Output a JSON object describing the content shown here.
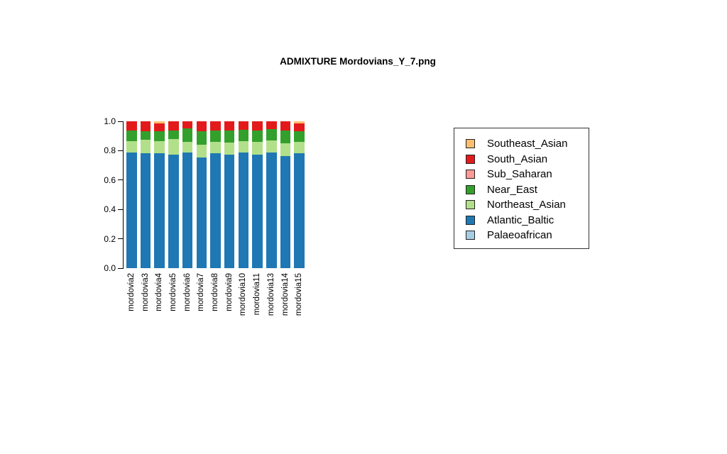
{
  "title": "ADMIXTURE Mordovians_Y_7.png",
  "chart_data": {
    "type": "bar",
    "stacked": true,
    "title": "ADMIXTURE Mordovians_Y_7.png",
    "xlabel": "",
    "ylabel": "",
    "ylim": [
      0,
      1
    ],
    "grid": false,
    "legend_position": "right",
    "yticks": [
      0.0,
      0.2,
      0.4,
      0.6,
      0.8,
      1.0
    ],
    "ytick_labels": [
      "0.0",
      "0.2",
      "0.4",
      "0.6",
      "0.8",
      "1.0"
    ],
    "categories": [
      "mordovia2",
      "mordovia3",
      "mordovia4",
      "mordovia5",
      "mordovia6",
      "mordovia7",
      "mordovia8",
      "mordovia9",
      "mordovia10",
      "mordovia11",
      "mordovia13",
      "mordovia14",
      "mordovia15"
    ],
    "series": [
      {
        "name": "Palaeoafrican",
        "color": "#A6CEE3",
        "values": [
          0,
          0,
          0,
          0,
          0,
          0,
          0,
          0,
          0,
          0,
          0,
          0,
          0
        ]
      },
      {
        "name": "Atlantic_Baltic",
        "color": "#1F78B4",
        "values": [
          0.788,
          0.781,
          0.785,
          0.774,
          0.789,
          0.752,
          0.781,
          0.773,
          0.786,
          0.773,
          0.789,
          0.765,
          0.784
        ]
      },
      {
        "name": "Northeast_Asian",
        "color": "#B2DF8A",
        "values": [
          0.078,
          0.092,
          0.081,
          0.105,
          0.072,
          0.089,
          0.08,
          0.081,
          0.08,
          0.088,
          0.081,
          0.085,
          0.077
        ]
      },
      {
        "name": "Near_East",
        "color": "#33A02C",
        "values": [
          0.071,
          0.058,
          0.068,
          0.058,
          0.089,
          0.09,
          0.076,
          0.083,
          0.076,
          0.076,
          0.077,
          0.087,
          0.073
        ]
      },
      {
        "name": "Sub_Saharan",
        "color": "#FB9A99",
        "values": [
          0,
          0,
          0,
          0,
          0,
          0,
          0,
          0,
          0,
          0,
          0,
          0,
          0
        ]
      },
      {
        "name": "South_Asian",
        "color": "#E31A1C",
        "values": [
          0.063,
          0.069,
          0.053,
          0.063,
          0.05,
          0.069,
          0.063,
          0.063,
          0.058,
          0.063,
          0.053,
          0.063,
          0.053
        ]
      },
      {
        "name": "Southeast_Asian",
        "color": "#FDBF6F",
        "values": [
          0,
          0,
          0.013,
          0,
          0,
          0,
          0,
          0,
          0,
          0,
          0,
          0,
          0.013
        ]
      }
    ],
    "legend_order_top_to_bottom": [
      "Southeast_Asian",
      "South_Asian",
      "Sub_Saharan",
      "Near_East",
      "Northeast_Asian",
      "Atlantic_Baltic",
      "Palaeoafrican"
    ],
    "colors": {
      "axis": "#000000",
      "background": "#ffffff"
    }
  }
}
